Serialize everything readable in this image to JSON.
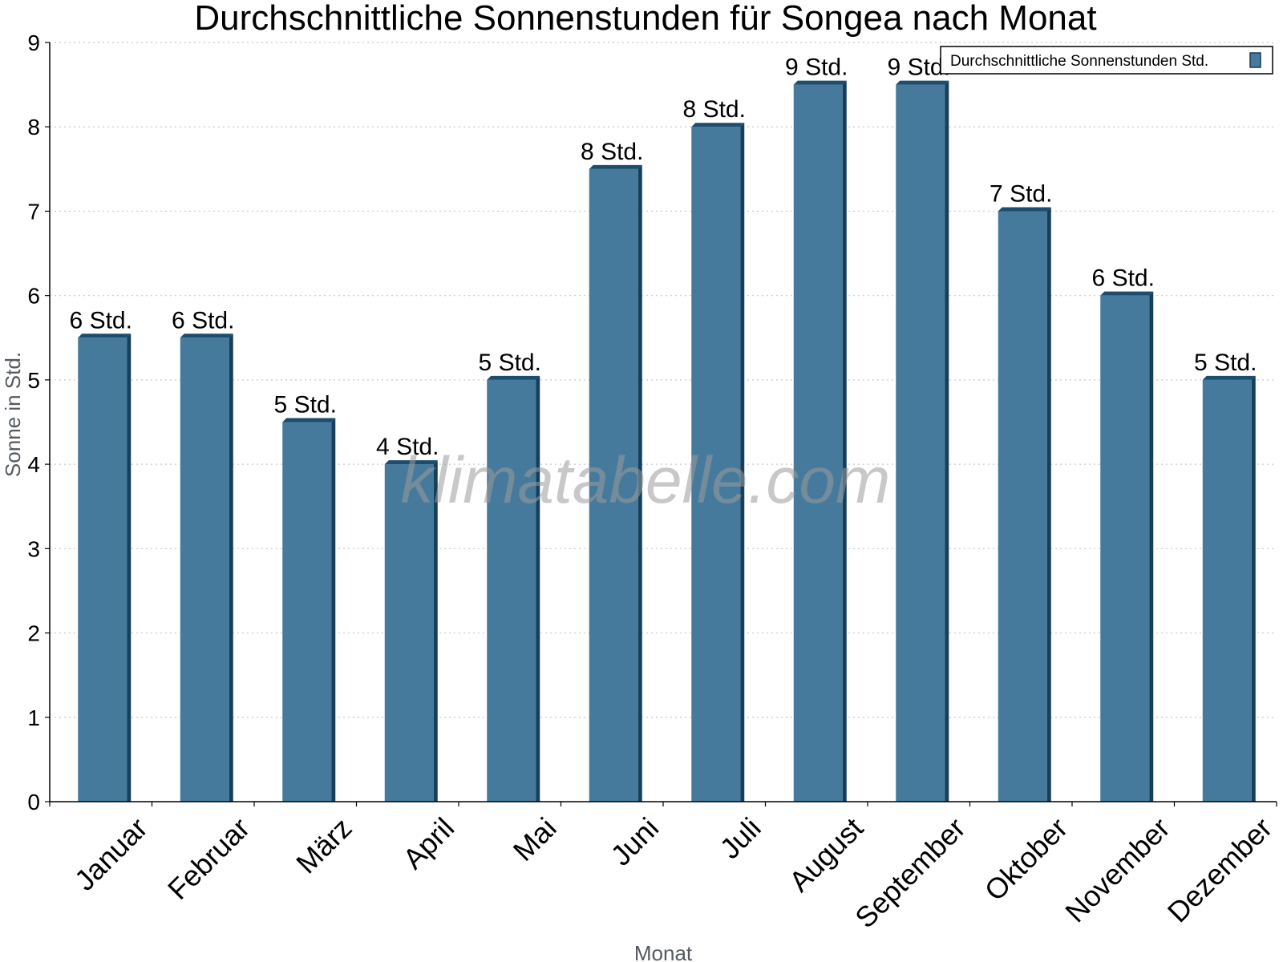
{
  "chart_data": {
    "type": "bar",
    "title": "Durchschnittliche Sonnenstunden für Songea nach Monat",
    "xlabel": "Monat",
    "ylabel": "Sonne in Std.",
    "ylim": [
      0,
      9
    ],
    "yticks": [
      "0",
      "1",
      "2",
      "3",
      "4",
      "5",
      "6",
      "7",
      "8",
      "9"
    ],
    "grid": true,
    "legend_position": "top-right",
    "categories": [
      "Januar",
      "Februar",
      "März",
      "April",
      "Mai",
      "Juni",
      "Juli",
      "August",
      "September",
      "Oktober",
      "November",
      "Dezember"
    ],
    "series": [
      {
        "name": "Durchschnittliche Sonnenstunden Std.",
        "color": "#467a9c",
        "values": [
          5.5,
          5.5,
          4.5,
          4,
          5,
          7.5,
          8,
          8.5,
          8.5,
          7,
          6,
          5
        ],
        "data_labels": [
          "6 Std.",
          "6 Std.",
          "5 Std.",
          "4 Std.",
          "5 Std.",
          "8 Std.",
          "8 Std.",
          "9 Std.",
          "9 Std.",
          "7 Std.",
          "6 Std.",
          "5 Std."
        ]
      }
    ],
    "watermark": "klimatabelle.com"
  }
}
